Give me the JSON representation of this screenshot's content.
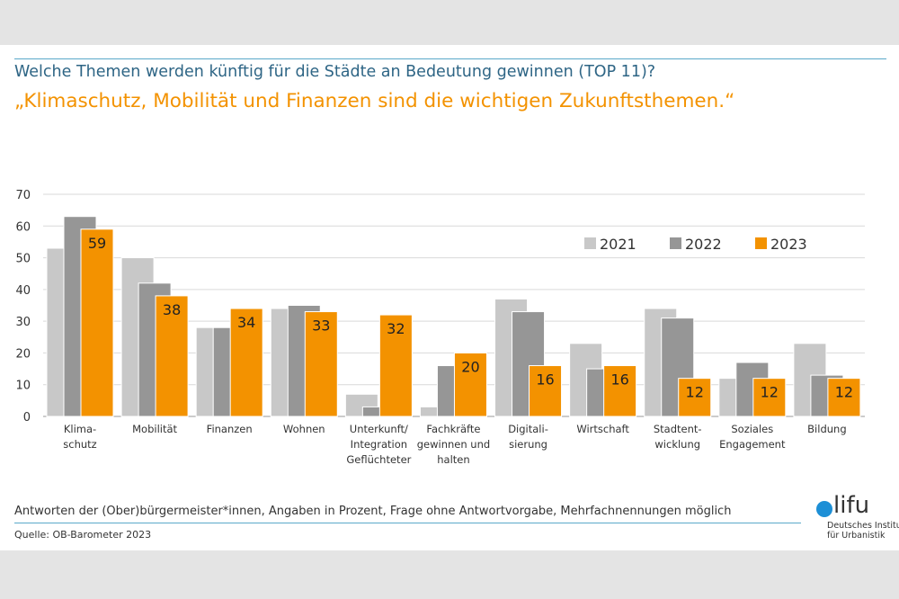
{
  "question": "Welche Themen werden künftig für die Städte an Bedeutung gewinnen (TOP 11)?",
  "headline": "„Klimaschutz, Mobilität und Finanzen sind die wichtigen Zukunftsthemen.“",
  "footnote": "Antworten der (Ober)bürgermeister*innen, Angaben in Prozent, Frage ohne Antwortvorgabe, Mehrfachnennungen möglich",
  "source": "Quelle: OB-Barometer 2023",
  "logo": {
    "word": "lifu",
    "line1": "Deutsches Institut",
    "line2": "für Urbanistik",
    "color": "#1d8fd6"
  },
  "chart_data": {
    "type": "bar",
    "categories": [
      [
        "Klima-",
        "schutz"
      ],
      [
        "Mobilität"
      ],
      [
        "Finanzen"
      ],
      [
        "Wohnen"
      ],
      [
        "Unterkunft/",
        "Integration",
        "Geflüchteter"
      ],
      [
        "Fachkräfte",
        "gewinnen und",
        "halten"
      ],
      [
        "Digitali-",
        "sierung"
      ],
      [
        "Wirtschaft"
      ],
      [
        "Stadtent-",
        "wicklung"
      ],
      [
        "Soziales",
        "Engagement"
      ],
      [
        "Bildung"
      ]
    ],
    "series": [
      {
        "name": "2021",
        "color": "#c8c8c8",
        "values": [
          53,
          50,
          28,
          34,
          7,
          3,
          37,
          23,
          34,
          12,
          23
        ]
      },
      {
        "name": "2022",
        "color": "#969696",
        "values": [
          63,
          42,
          28,
          35,
          3,
          16,
          33,
          15,
          31,
          17,
          13
        ]
      },
      {
        "name": "2023",
        "color": "#f39200",
        "values": [
          59,
          38,
          34,
          33,
          32,
          20,
          16,
          16,
          12,
          12,
          12
        ],
        "data_labels": true
      }
    ],
    "ylim": [
      0,
      70
    ],
    "yticks": [
      0,
      10,
      20,
      30,
      40,
      50,
      60,
      70
    ],
    "grid": true,
    "legend": "top-right"
  }
}
